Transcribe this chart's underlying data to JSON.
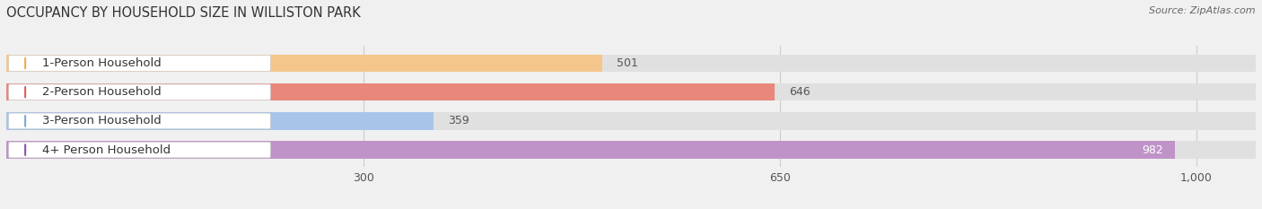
{
  "title": "OCCUPANCY BY HOUSEHOLD SIZE IN WILLISTON PARK",
  "source": "Source: ZipAtlas.com",
  "categories": [
    "1-Person Household",
    "2-Person Household",
    "3-Person Household",
    "4+ Person Household"
  ],
  "values": [
    501,
    646,
    359,
    982
  ],
  "bar_colors": [
    "#f5c68c",
    "#e8877a",
    "#a8c4e8",
    "#bf93c8"
  ],
  "circle_colors": [
    "#f0a84a",
    "#d96060",
    "#7aa8d8",
    "#8855aa"
  ],
  "label_colors": [
    "#444444",
    "#444444",
    "#444444",
    "#ffffff"
  ],
  "x_ticks": [
    300,
    650,
    1000
  ],
  "x_tick_labels": [
    "300",
    "650",
    "1,000"
  ],
  "x_min": 0,
  "x_max": 1050,
  "bg_color": "#f0f0f0",
  "bar_bg_color": "#e0e0e0",
  "white_label_bg": "#ffffff",
  "title_fontsize": 10.5,
  "source_fontsize": 8,
  "tick_fontsize": 9,
  "bar_label_fontsize": 9,
  "cat_label_fontsize": 9.5
}
